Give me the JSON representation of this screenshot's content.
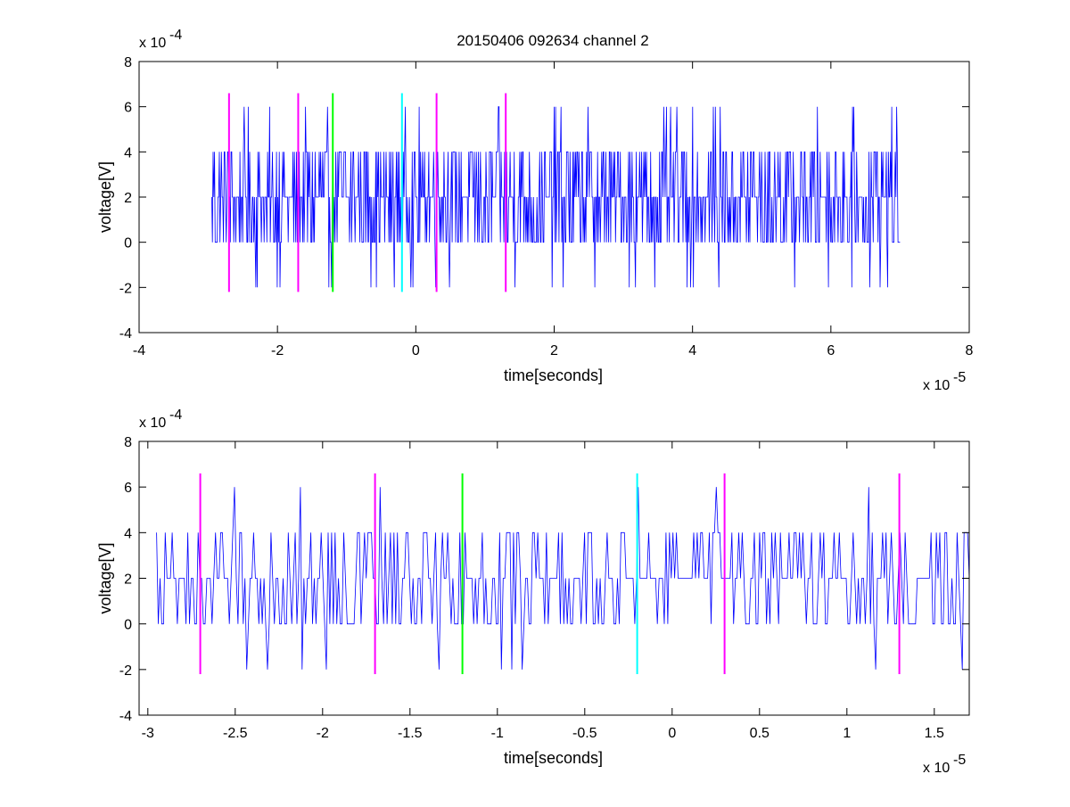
{
  "figure_title": "20150406 092634 channel 2",
  "colors": {
    "signal": "#0000ff",
    "marker_magenta": "#ff00ff",
    "marker_green": "#00ff00",
    "marker_cyan": "#00ffff",
    "axes": "#000000",
    "background": "#ffffff"
  },
  "chart_data": [
    {
      "type": "line",
      "title": "20150406 092634 channel 2",
      "xlabel": "time[seconds]",
      "ylabel": "voltage[V]",
      "x_multiplier_label": "x 10",
      "x_multiplier_exp": "-5",
      "y_multiplier_label": "x 10",
      "y_multiplier_exp": "-4",
      "xlim": [
        -4,
        8
      ],
      "ylim": [
        -4,
        8
      ],
      "xticks": [
        -4,
        -2,
        0,
        2,
        4,
        6,
        8
      ],
      "xtick_labels": [
        "-4",
        "-2",
        "0",
        "2",
        "4",
        "6",
        "8"
      ],
      "yticks": [
        -4,
        -2,
        0,
        2,
        4,
        6,
        8
      ],
      "ytick_labels": [
        "-4",
        "-2",
        "0",
        "2",
        "4",
        "6",
        "8"
      ],
      "grid": false,
      "signal_range_x": [
        -2.95,
        7.0
      ],
      "signal_levels": [
        -2,
        0,
        2,
        4,
        6
      ],
      "signal_samples": 1000,
      "markers": [
        {
          "x": -2.7,
          "color": "magenta",
          "ymin": -2.2,
          "ymax": 6.6
        },
        {
          "x": -1.7,
          "color": "magenta",
          "ymin": -2.2,
          "ymax": 6.6
        },
        {
          "x": -1.2,
          "color": "green",
          "ymin": -2.2,
          "ymax": 6.6
        },
        {
          "x": -0.2,
          "color": "cyan",
          "ymin": -2.2,
          "ymax": 6.6
        },
        {
          "x": 0.3,
          "color": "magenta",
          "ymin": -2.2,
          "ymax": 6.6
        },
        {
          "x": 1.3,
          "color": "magenta",
          "ymin": -2.2,
          "ymax": 6.6
        }
      ]
    },
    {
      "type": "line",
      "title": "",
      "xlabel": "time[seconds]",
      "ylabel": "voltage[V]",
      "x_multiplier_label": "x 10",
      "x_multiplier_exp": "-5",
      "y_multiplier_label": "x 10",
      "y_multiplier_exp": "-4",
      "xlim": [
        -3.05,
        1.7
      ],
      "ylim": [
        -4,
        8
      ],
      "xticks": [
        -3,
        -2.5,
        -2,
        -1.5,
        -1,
        -0.5,
        0,
        0.5,
        1,
        1.5
      ],
      "xtick_labels": [
        "-3",
        "-2.5",
        "-2",
        "-1.5",
        "-1",
        "-0.5",
        "0",
        "0.5",
        "1",
        "1.5"
      ],
      "yticks": [
        -4,
        -2,
        0,
        2,
        4,
        6,
        8
      ],
      "ytick_labels": [
        "-4",
        "-2",
        "0",
        "2",
        "4",
        "6",
        "8"
      ],
      "grid": false,
      "signal_range_x": [
        -2.95,
        1.7
      ],
      "signal_levels": [
        -2,
        0,
        2,
        4,
        6
      ],
      "signal_samples": 470,
      "markers": [
        {
          "x": -2.7,
          "color": "magenta",
          "ymin": -2.2,
          "ymax": 6.6
        },
        {
          "x": -1.7,
          "color": "magenta",
          "ymin": -2.2,
          "ymax": 6.6
        },
        {
          "x": -1.2,
          "color": "green",
          "ymin": -2.2,
          "ymax": 6.6
        },
        {
          "x": -0.2,
          "color": "cyan",
          "ymin": -2.2,
          "ymax": 6.6
        },
        {
          "x": 0.3,
          "color": "magenta",
          "ymin": -2.2,
          "ymax": 6.6
        },
        {
          "x": 1.3,
          "color": "magenta",
          "ymin": -2.2,
          "ymax": 6.6
        }
      ]
    }
  ]
}
